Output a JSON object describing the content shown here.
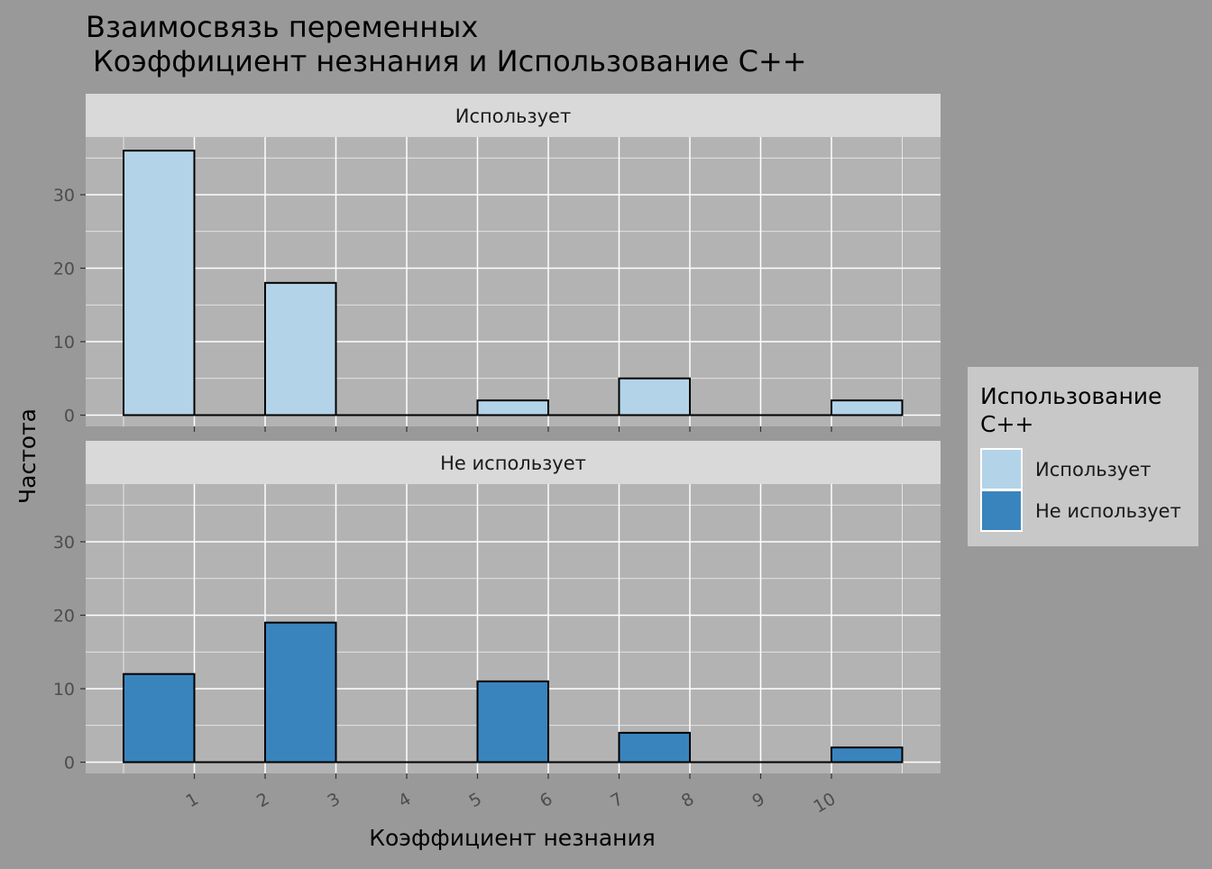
{
  "chart_data": {
    "type": "bar",
    "title": "Взаимосвязь переменных",
    "subtitle": "Коэффициент незнания и Использование С++",
    "xlabel": "Коэффициент незнания",
    "ylabel": "Частота",
    "x_ticks": [
      "1",
      "2",
      "3",
      "4",
      "5",
      "6",
      "7",
      "8",
      "9",
      "10"
    ],
    "y_ticks": [
      0,
      10,
      20,
      30
    ],
    "ylim": [
      0,
      38
    ],
    "xlim": [
      -0.5,
      11.5
    ],
    "grid": true,
    "legend_position": "right",
    "legend_title": "Использование С++",
    "bin_width": 1,
    "bin_centers": [
      0.5,
      1.5,
      2.5,
      3.5,
      4.5,
      5.5,
      6.5,
      7.5,
      8.5,
      9.5,
      10.5
    ],
    "facets": [
      {
        "name": "Использует",
        "color": "#b3d3e8",
        "values": [
          36,
          0,
          18,
          0,
          0,
          2,
          0,
          5,
          0,
          0,
          2
        ]
      },
      {
        "name": "Не использует",
        "color": "#3a84be",
        "values": [
          12,
          0,
          19,
          0,
          0,
          11,
          0,
          4,
          0,
          0,
          2
        ]
      }
    ]
  }
}
